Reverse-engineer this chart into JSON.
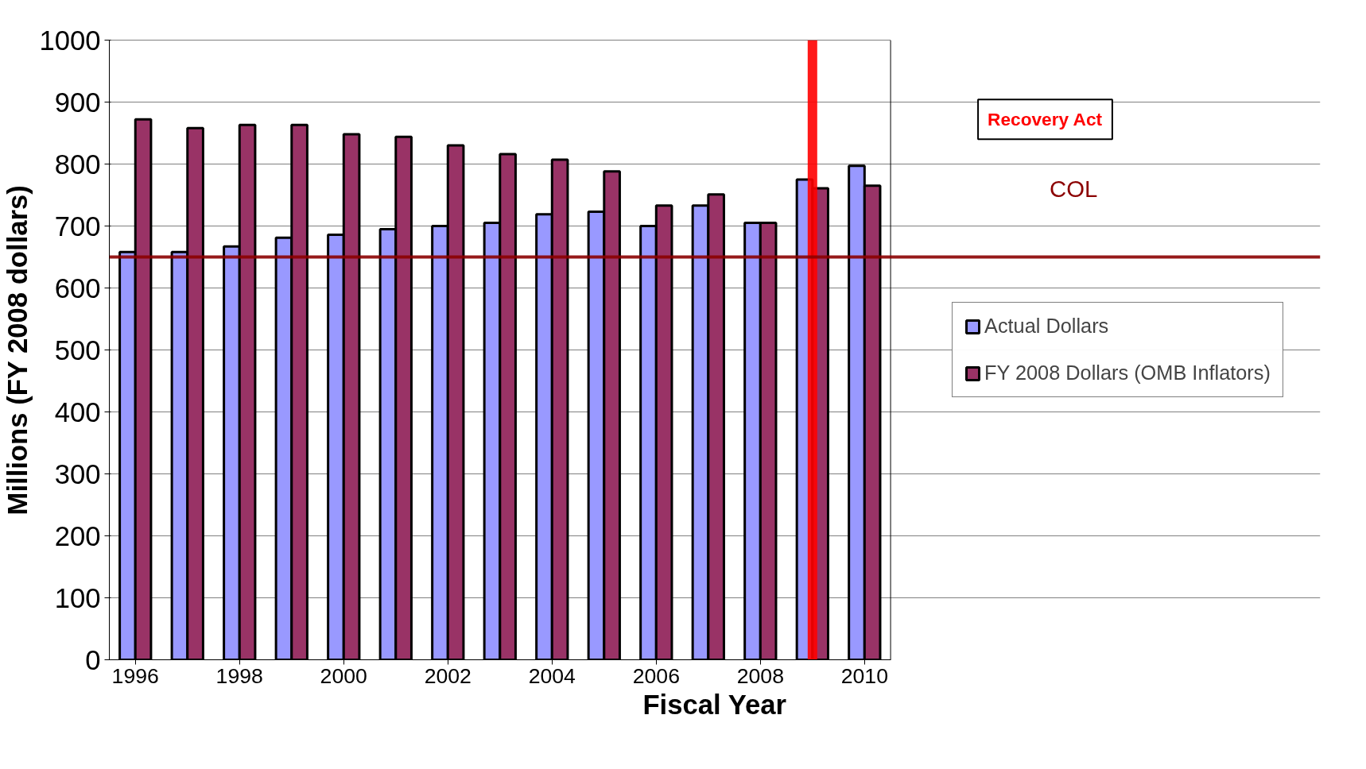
{
  "chart_data": {
    "type": "bar",
    "xlabel": "Fiscal Year",
    "ylabel": "Millions (FY 2008 dollars)",
    "x": [
      1996,
      1997,
      1998,
      1999,
      2000,
      2001,
      2002,
      2003,
      2004,
      2005,
      2006,
      2007,
      2008,
      2009,
      2010
    ],
    "xlim": [
      1995.5,
      2010.5
    ],
    "xticks": [
      1996,
      1998,
      2000,
      2002,
      2004,
      2006,
      2008,
      2010
    ],
    "ylim": [
      0,
      1000
    ],
    "yticks": [
      0,
      100,
      200,
      300,
      400,
      500,
      600,
      700,
      800,
      900,
      1000
    ],
    "series": [
      {
        "name": "Actual Dollars",
        "color": "#9999ff",
        "values": [
          658,
          658,
          667,
          681,
          686,
          695,
          700,
          705,
          719,
          723,
          700,
          733,
          705,
          775,
          797
        ]
      },
      {
        "name": "FY 2008 Dollars (OMB Inflators)",
        "color": "#993366",
        "values": [
          872,
          858,
          863,
          863,
          848,
          844,
          830,
          816,
          807,
          788,
          733,
          751,
          705,
          761,
          765
        ]
      }
    ],
    "ref_lines": [
      {
        "axis": "x",
        "value": 2009,
        "label": "Recovery Act",
        "color": "#ff0000"
      },
      {
        "axis": "y",
        "value": 650,
        "label": "COL",
        "color": "#8b0000"
      }
    ],
    "grid": "y",
    "legend": "right"
  }
}
